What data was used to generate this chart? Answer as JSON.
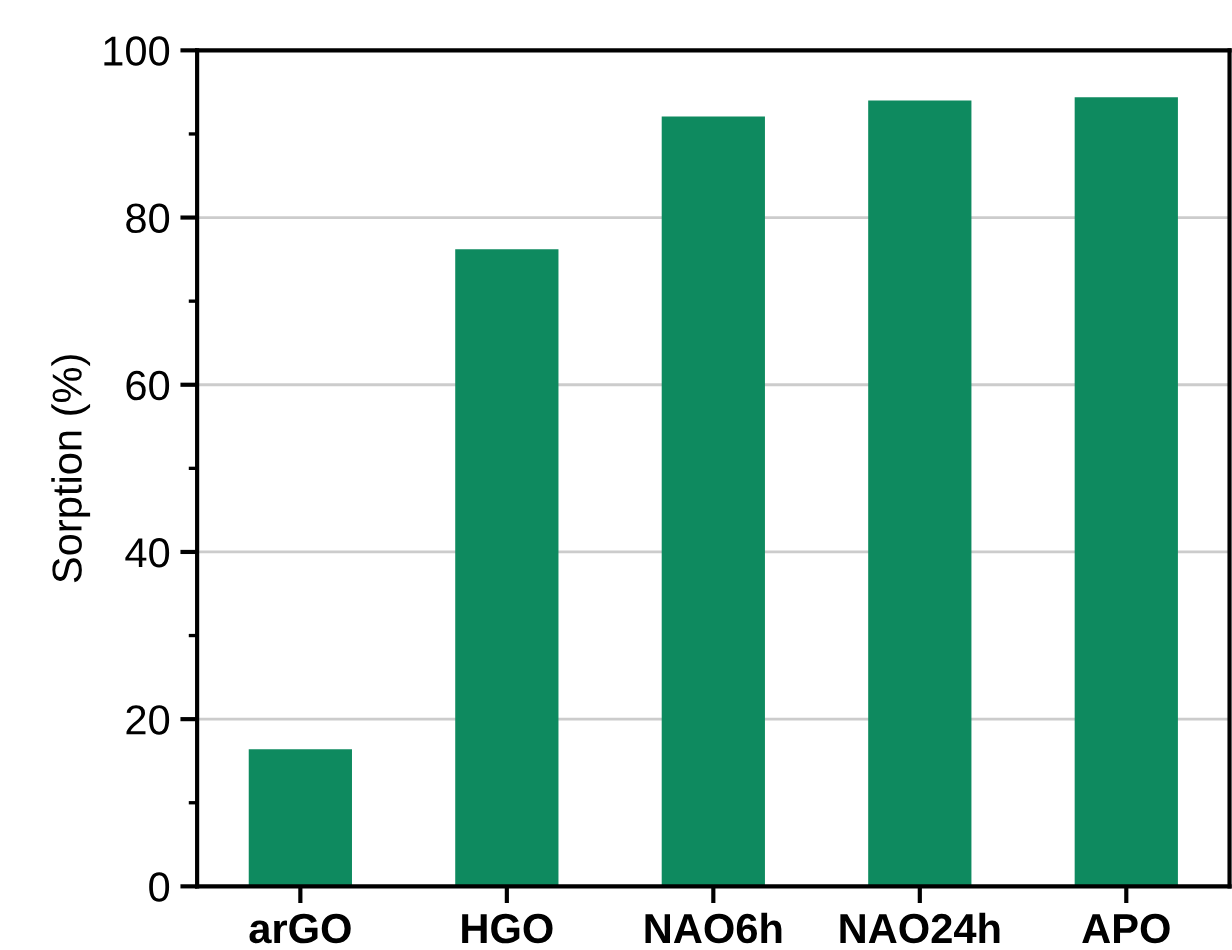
{
  "chart_data": {
    "type": "bar",
    "ylabel": "Sorption (%)",
    "categories": [
      "arGO",
      "HGO",
      "NAO6h",
      "NAO24h",
      "APO"
    ],
    "values": [
      16.4,
      76.2,
      92.1,
      94.0,
      94.4
    ],
    "color": "#0e8a5f",
    "ylim": [
      0,
      100
    ],
    "yticks": [
      0,
      20,
      40,
      60,
      80,
      100
    ],
    "grid": "y"
  }
}
